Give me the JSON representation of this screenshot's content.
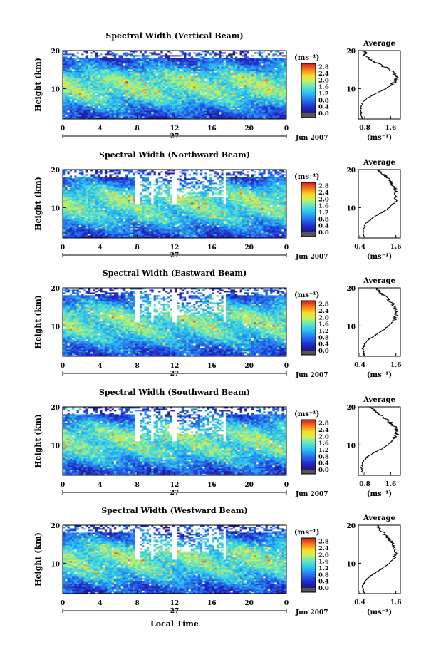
{
  "figure": {
    "x_axis_label": "Local Time",
    "colorbar_unit": "(ms⁻¹)",
    "avg_unit": "(ms⁻¹)",
    "date_label": "Jun 2007",
    "day_label": "27"
  },
  "chart_data": [
    {
      "type": "heatmap",
      "title": "Spectral Width (Vertical Beam)",
      "ylabel": "Height (km)",
      "xlabel": "",
      "x_ticks": [
        "0",
        "4",
        "8",
        "12",
        "16",
        "20",
        "0"
      ],
      "y_ticks": [
        "10",
        "20"
      ],
      "ylim": [
        2,
        20
      ],
      "xlim": [
        0,
        24
      ],
      "colorbar_ticks": [
        "0.0",
        "0.4",
        "0.8",
        "1.2",
        "1.6",
        "2.0",
        "2.4",
        "2.8"
      ],
      "colorbar_range": [
        0.0,
        3.0
      ],
      "features": {
        "high_layer_km": [
          10,
          15
        ],
        "data_gaps": []
      },
      "average_profile": {
        "title": "Average",
        "x_ticks": [
          "0.8",
          "1.6"
        ],
        "xlim": [
          0.6,
          1.9
        ],
        "height_km": [
          2,
          3,
          4,
          5,
          6,
          7,
          8,
          9,
          10,
          11,
          12,
          13,
          14,
          15,
          16,
          17,
          18,
          19,
          20
        ],
        "value": [
          0.72,
          0.7,
          0.68,
          0.68,
          0.72,
          0.8,
          0.98,
          1.22,
          1.45,
          1.62,
          1.75,
          1.78,
          1.7,
          1.55,
          1.35,
          1.1,
          0.9,
          0.8,
          0.78
        ]
      }
    },
    {
      "type": "heatmap",
      "title": "Spectral Width (Northward Beam)",
      "ylabel": "Height (km)",
      "xlabel": "",
      "x_ticks": [
        "0",
        "4",
        "8",
        "12",
        "16",
        "20",
        "0"
      ],
      "y_ticks": [
        "10",
        "20"
      ],
      "ylim": [
        2,
        20
      ],
      "xlim": [
        0,
        24
      ],
      "colorbar_ticks": [
        "0.0",
        "0.4",
        "0.8",
        "1.2",
        "1.6",
        "2.0",
        "2.4",
        "2.8"
      ],
      "colorbar_range": [
        0.0,
        3.0
      ],
      "features": {
        "high_layer_km": [
          10,
          16
        ],
        "data_gaps": [
          8,
          9.7,
          12,
          17.4
        ]
      },
      "average_profile": {
        "title": "Average",
        "x_ticks": [
          "0.4",
          "1.6"
        ],
        "xlim": [
          0.35,
          1.75
        ],
        "height_km": [
          2,
          3,
          4,
          5,
          6,
          7,
          8,
          9,
          10,
          11,
          12,
          13,
          14,
          15,
          16,
          17,
          18,
          19,
          20
        ],
        "value": [
          0.55,
          0.52,
          0.5,
          0.55,
          0.62,
          0.78,
          0.98,
          1.2,
          1.38,
          1.5,
          1.6,
          1.62,
          1.58,
          1.55,
          1.5,
          1.42,
          1.3,
          1.15,
          1.0
        ]
      }
    },
    {
      "type": "heatmap",
      "title": "Spectral Width (Eastward Beam)",
      "ylabel": "Height (km)",
      "xlabel": "",
      "x_ticks": [
        "0",
        "4",
        "8",
        "12",
        "16",
        "20",
        "0"
      ],
      "y_ticks": [
        "10",
        "20"
      ],
      "ylim": [
        2,
        20
      ],
      "xlim": [
        0,
        24
      ],
      "colorbar_ticks": [
        "0.0",
        "0.4",
        "0.8",
        "1.2",
        "1.6",
        "2.0",
        "2.4",
        "2.8"
      ],
      "colorbar_range": [
        0.0,
        3.0
      ],
      "features": {
        "high_layer_km": [
          10,
          16
        ],
        "data_gaps": [
          8,
          9.7,
          12,
          17.4
        ]
      },
      "average_profile": {
        "title": "Average",
        "x_ticks": [
          "0.4",
          "1.6"
        ],
        "xlim": [
          0.35,
          1.75
        ],
        "height_km": [
          2,
          3,
          4,
          5,
          6,
          7,
          8,
          9,
          10,
          11,
          12,
          13,
          14,
          15,
          16,
          17,
          18,
          19,
          20
        ],
        "value": [
          0.55,
          0.52,
          0.5,
          0.55,
          0.62,
          0.8,
          1.0,
          1.2,
          1.35,
          1.48,
          1.58,
          1.62,
          1.6,
          1.55,
          1.48,
          1.35,
          1.2,
          1.05,
          0.95
        ]
      }
    },
    {
      "type": "heatmap",
      "title": "Spectral Width (Southward Beam)",
      "ylabel": "Height (km)",
      "xlabel": "",
      "x_ticks": [
        "0",
        "4",
        "8",
        "12",
        "16",
        "20",
        "0"
      ],
      "y_ticks": [
        "10",
        "20"
      ],
      "ylim": [
        2,
        20
      ],
      "xlim": [
        0,
        24
      ],
      "colorbar_ticks": [
        "0.0",
        "0.4",
        "0.8",
        "1.2",
        "1.6",
        "2.0",
        "2.4",
        "2.8"
      ],
      "colorbar_range": [
        0.0,
        3.0
      ],
      "features": {
        "high_layer_km": [
          10,
          16
        ],
        "data_gaps": [
          8,
          9.7,
          12,
          17.4
        ]
      },
      "average_profile": {
        "title": "Average",
        "x_ticks": [
          "0.8",
          "1.6"
        ],
        "xlim": [
          0.6,
          1.9
        ],
        "height_km": [
          2,
          3,
          4,
          5,
          6,
          7,
          8,
          9,
          10,
          11,
          12,
          13,
          14,
          15,
          16,
          17,
          18,
          19,
          20
        ],
        "value": [
          0.75,
          0.72,
          0.7,
          0.72,
          0.78,
          0.9,
          1.1,
          1.32,
          1.5,
          1.65,
          1.75,
          1.8,
          1.78,
          1.7,
          1.58,
          1.42,
          1.25,
          1.1,
          1.0
        ]
      }
    },
    {
      "type": "heatmap",
      "title": "Spectral Width (Westward Beam)",
      "ylabel": "Height (km)",
      "xlabel": "Local Time",
      "x_ticks": [
        "0",
        "4",
        "8",
        "12",
        "16",
        "20",
        "0"
      ],
      "y_ticks": [
        "10",
        "20"
      ],
      "ylim": [
        2,
        20
      ],
      "xlim": [
        0,
        24
      ],
      "colorbar_ticks": [
        "0.0",
        "0.4",
        "0.8",
        "1.2",
        "1.6",
        "2.0",
        "2.4",
        "2.8"
      ],
      "colorbar_range": [
        0.0,
        3.0
      ],
      "features": {
        "high_layer_km": [
          10,
          16
        ],
        "data_gaps": [
          8,
          9.7,
          12,
          17.4
        ]
      },
      "average_profile": {
        "title": "Average",
        "x_ticks": [
          "0.4",
          "1.6"
        ],
        "xlim": [
          0.35,
          1.75
        ],
        "height_km": [
          2,
          3,
          4,
          5,
          6,
          7,
          8,
          9,
          10,
          11,
          12,
          13,
          14,
          15,
          16,
          17,
          18,
          19,
          20
        ],
        "value": [
          0.55,
          0.52,
          0.5,
          0.55,
          0.65,
          0.82,
          1.02,
          1.22,
          1.38,
          1.5,
          1.58,
          1.6,
          1.55,
          1.5,
          1.42,
          1.3,
          1.18,
          1.05,
          0.95
        ]
      }
    }
  ]
}
